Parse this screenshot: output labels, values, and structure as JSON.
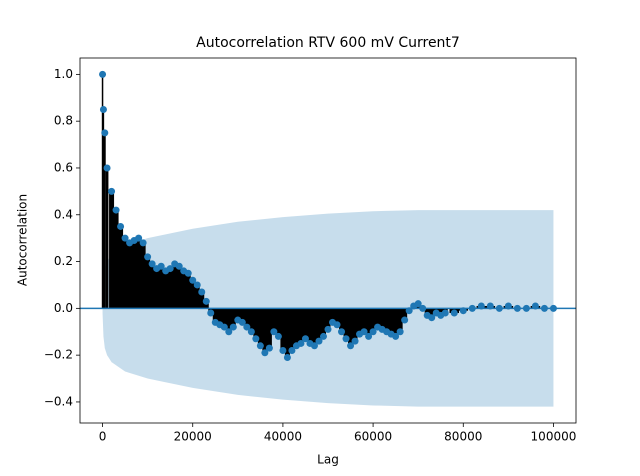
{
  "chart_data": {
    "type": "acf",
    "title": "Autocorrelation RTV 600 mV Current7",
    "xlabel": "Lag",
    "ylabel": "Autocorrelation",
    "color": "#1f77b4",
    "stem_color": "#000000",
    "band_color": "#1f77b4",
    "x": [
      0,
      200,
      500,
      1000,
      2000,
      3000,
      4000,
      5000,
      6000,
      7000,
      8000,
      9000,
      10000,
      11000,
      12000,
      13000,
      14000,
      15000,
      16000,
      17000,
      18000,
      19000,
      20000,
      21000,
      22000,
      23000,
      24000,
      25000,
      26000,
      27000,
      28000,
      29000,
      30000,
      31000,
      32000,
      33000,
      34000,
      35000,
      36000,
      37000,
      38000,
      39000,
      40000,
      41000,
      42000,
      43000,
      44000,
      45000,
      46000,
      47000,
      48000,
      49000,
      50000,
      51000,
      52000,
      53000,
      54000,
      55000,
      56000,
      57000,
      58000,
      59000,
      60000,
      61000,
      62000,
      63000,
      64000,
      65000,
      66000,
      67000,
      68000,
      69000,
      70000,
      71000,
      72000,
      73000,
      74000,
      75000,
      76000,
      78000,
      80000,
      82000,
      84000,
      86000,
      88000,
      90000,
      92000,
      94000,
      96000,
      98000,
      100000
    ],
    "values": [
      1.0,
      0.85,
      0.75,
      0.6,
      0.5,
      0.42,
      0.35,
      0.3,
      0.28,
      0.29,
      0.3,
      0.28,
      0.22,
      0.19,
      0.17,
      0.18,
      0.16,
      0.17,
      0.19,
      0.18,
      0.16,
      0.15,
      0.12,
      0.1,
      0.07,
      0.03,
      -0.02,
      -0.06,
      -0.07,
      -0.08,
      -0.1,
      -0.08,
      -0.05,
      -0.06,
      -0.08,
      -0.1,
      -0.13,
      -0.16,
      -0.19,
      -0.17,
      -0.1,
      -0.12,
      -0.18,
      -0.21,
      -0.18,
      -0.16,
      -0.15,
      -0.13,
      -0.15,
      -0.16,
      -0.14,
      -0.12,
      -0.09,
      -0.06,
      -0.07,
      -0.1,
      -0.13,
      -0.16,
      -0.14,
      -0.11,
      -0.1,
      -0.12,
      -0.1,
      -0.08,
      -0.09,
      -0.1,
      -0.11,
      -0.12,
      -0.1,
      -0.05,
      -0.01,
      0.01,
      0.02,
      0.0,
      -0.03,
      -0.04,
      -0.02,
      -0.03,
      -0.02,
      -0.02,
      -0.01,
      0.0,
      0.01,
      0.01,
      0.0,
      0.01,
      0.0,
      0.0,
      0.01,
      0.0,
      0.0
    ],
    "confint": {
      "x": [
        1,
        200,
        500,
        1000,
        2000,
        5000,
        10000,
        20000,
        30000,
        40000,
        50000,
        60000,
        70000,
        80000,
        100000
      ],
      "upper": [
        0.02,
        0.12,
        0.17,
        0.2,
        0.23,
        0.27,
        0.3,
        0.34,
        0.37,
        0.39,
        0.405,
        0.415,
        0.42,
        0.42,
        0.42
      ],
      "lower": [
        -0.02,
        -0.12,
        -0.17,
        -0.2,
        -0.23,
        -0.27,
        -0.3,
        -0.34,
        -0.37,
        -0.39,
        -0.405,
        -0.415,
        -0.42,
        -0.42,
        -0.42
      ]
    },
    "xlim": [
      -5000,
      105000
    ],
    "ylim": [
      -0.49,
      1.07
    ],
    "xticks": [
      0,
      20000,
      40000,
      60000,
      80000,
      100000
    ],
    "yticks": [
      {
        "value": -0.4,
        "label": "−0.4"
      },
      {
        "value": -0.2,
        "label": "−0.2"
      },
      {
        "value": 0,
        "label": "0.0"
      },
      0.2,
      0.4,
      0.6,
      0.8,
      {
        "value": 1,
        "label": "1.0"
      }
    ]
  }
}
